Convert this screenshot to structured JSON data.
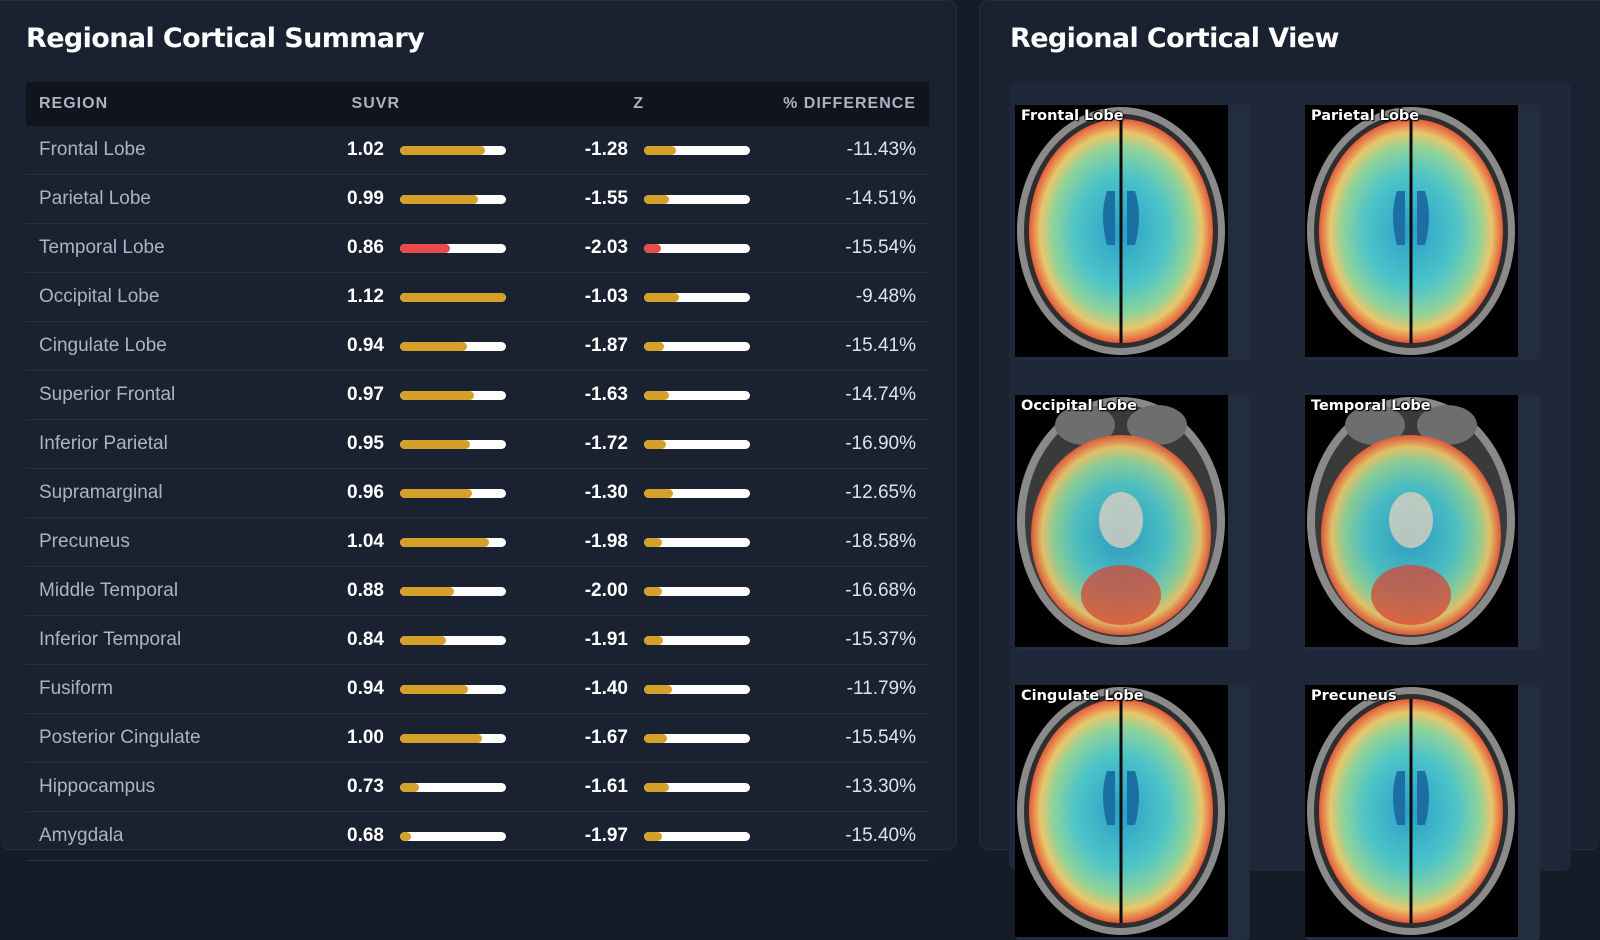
{
  "summary": {
    "title": "Regional Cortical Summary",
    "columns": {
      "region": "REGION",
      "suvr": "SUVR",
      "z": "Z",
      "pct": "% DIFFERENCE"
    },
    "rows": [
      {
        "region": "Frontal Lobe",
        "suvr": "1.02",
        "suvr_fill": 0.8,
        "z": "-1.28",
        "z_fill": 0.3,
        "pct": "-11.43%",
        "color": "#d4a02a"
      },
      {
        "region": "Parietal Lobe",
        "suvr": "0.99",
        "suvr_fill": 0.74,
        "z": "-1.55",
        "z_fill": 0.24,
        "pct": "-14.51%",
        "color": "#d4a02a"
      },
      {
        "region": "Temporal Lobe",
        "suvr": "0.86",
        "suvr_fill": 0.47,
        "z": "-2.03",
        "z_fill": 0.16,
        "pct": "-15.54%",
        "color": "#e84b4b"
      },
      {
        "region": "Occipital Lobe",
        "suvr": "1.12",
        "suvr_fill": 1.0,
        "z": "-1.03",
        "z_fill": 0.33,
        "pct": "-9.48%",
        "color": "#d4a02a"
      },
      {
        "region": "Cingulate Lobe",
        "suvr": "0.94",
        "suvr_fill": 0.63,
        "z": "-1.87",
        "z_fill": 0.19,
        "pct": "-15.41%",
        "color": "#d4a02a"
      },
      {
        "region": "Superior Frontal",
        "suvr": "0.97",
        "suvr_fill": 0.7,
        "z": "-1.63",
        "z_fill": 0.24,
        "pct": "-14.74%",
        "color": "#d4a02a"
      },
      {
        "region": "Inferior Parietal",
        "suvr": "0.95",
        "suvr_fill": 0.66,
        "z": "-1.72",
        "z_fill": 0.21,
        "pct": "-16.90%",
        "color": "#d4a02a"
      },
      {
        "region": "Supramarginal",
        "suvr": "0.96",
        "suvr_fill": 0.68,
        "z": "-1.30",
        "z_fill": 0.27,
        "pct": "-12.65%",
        "color": "#d4a02a"
      },
      {
        "region": "Precuneus",
        "suvr": "1.04",
        "suvr_fill": 0.84,
        "z": "-1.98",
        "z_fill": 0.17,
        "pct": "-18.58%",
        "color": "#d4a02a"
      },
      {
        "region": "Middle Temporal",
        "suvr": "0.88",
        "suvr_fill": 0.51,
        "z": "-2.00",
        "z_fill": 0.17,
        "pct": "-16.68%",
        "color": "#d4a02a"
      },
      {
        "region": "Inferior Temporal",
        "suvr": "0.84",
        "suvr_fill": 0.43,
        "z": "-1.91",
        "z_fill": 0.18,
        "pct": "-15.37%",
        "color": "#d4a02a"
      },
      {
        "region": "Fusiform",
        "suvr": "0.94",
        "suvr_fill": 0.64,
        "z": "-1.40",
        "z_fill": 0.26,
        "pct": "-11.79%",
        "color": "#d4a02a"
      },
      {
        "region": "Posterior Cingulate",
        "suvr": "1.00",
        "suvr_fill": 0.77,
        "z": "-1.67",
        "z_fill": 0.22,
        "pct": "-15.54%",
        "color": "#d4a02a"
      },
      {
        "region": "Hippocampus",
        "suvr": "0.73",
        "suvr_fill": 0.18,
        "z": "-1.61",
        "z_fill": 0.24,
        "pct": "-13.30%",
        "color": "#d4a02a"
      },
      {
        "region": "Amygdala",
        "suvr": "0.68",
        "suvr_fill": 0.1,
        "z": "-1.97",
        "z_fill": 0.17,
        "pct": "-15.40%",
        "color": "#d4a02a"
      }
    ]
  },
  "view": {
    "title": "Regional Cortical View",
    "images": [
      {
        "label": "Frontal Lobe"
      },
      {
        "label": "Parietal Lobe"
      },
      {
        "label": "Occipital Lobe"
      },
      {
        "label": "Temporal Lobe"
      },
      {
        "label": "Cingulate Lobe"
      },
      {
        "label": "Precuneus"
      }
    ]
  }
}
